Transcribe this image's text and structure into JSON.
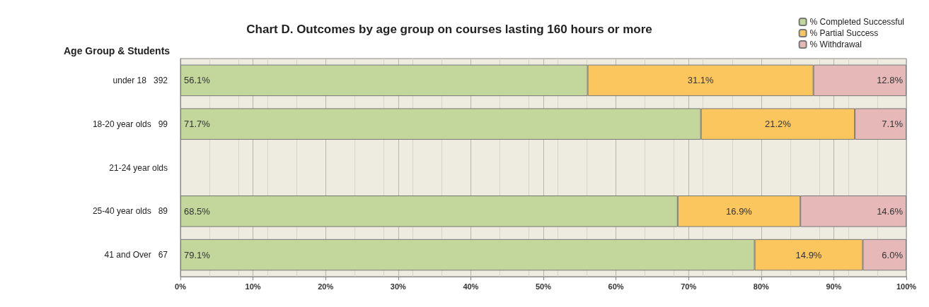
{
  "chart_data": {
    "type": "bar",
    "orientation": "horizontal",
    "stacked": true,
    "title": "Chart D. Outcomes by age group on courses lasting 160 hours or more",
    "ylabel": "Age Group & Students",
    "categories": [
      "under 18   392",
      "18-20 year olds   99",
      "21-24 year olds",
      "25-40 year olds   89",
      "41 and Over   67"
    ],
    "series": [
      {
        "name": "% Completed Successful",
        "color": "#c3d69b",
        "values": [
          56.1,
          71.7,
          null,
          68.5,
          79.1
        ],
        "value_labels": [
          "56.1%",
          "71.7%",
          null,
          "68.5%",
          "79.1%"
        ]
      },
      {
        "name": "% Partial Success",
        "color": "#fcc65e",
        "values": [
          31.1,
          21.2,
          null,
          16.9,
          14.9
        ],
        "value_labels": [
          "31.1%",
          "21.2%",
          null,
          "16.9%",
          "14.9%"
        ]
      },
      {
        "name": "% Withdrawal",
        "color": "#e6b9b8",
        "values": [
          12.8,
          7.1,
          null,
          14.6,
          6.0
        ],
        "value_labels": [
          "12.8%",
          "7.1%",
          null,
          "14.6%",
          "6.0%"
        ]
      }
    ],
    "xlim": [
      0,
      100
    ],
    "xticks": [
      {
        "value": 0,
        "label": "0%"
      },
      {
        "value": 10,
        "label": "10%"
      },
      {
        "value": 20,
        "label": "20%"
      },
      {
        "value": 30,
        "label": "30%"
      },
      {
        "value": 40,
        "label": "40%"
      },
      {
        "value": 50,
        "label": "50%"
      },
      {
        "value": 60,
        "label": "60%"
      },
      {
        "value": 70,
        "label": "70%"
      },
      {
        "value": 80,
        "label": "80%"
      },
      {
        "value": 90,
        "label": "90%"
      },
      {
        "value": 100,
        "label": "100%"
      }
    ],
    "grid": "x",
    "legend": "top right"
  }
}
